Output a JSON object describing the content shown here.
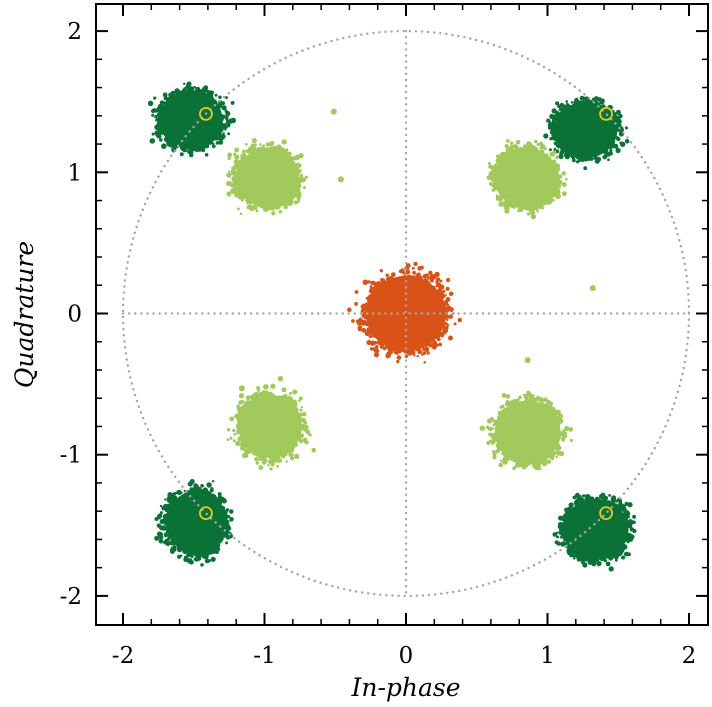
{
  "chart_data": {
    "type": "scatter",
    "xlabel": "In-phase",
    "ylabel": "Quadrature",
    "xlim": [
      -2,
      2
    ],
    "ylim": [
      -2,
      2
    ],
    "x_ticks": [
      "-2",
      "-1",
      "0",
      "1",
      "2"
    ],
    "y_ticks": [
      "-2",
      "-1",
      "0",
      "1",
      "2"
    ],
    "grid": false,
    "reference_circle": {
      "radius": 2,
      "style": "dotted",
      "color": "#a6a6a6"
    },
    "reference_axes": {
      "style": "dotted",
      "color": "#a6a6a6"
    },
    "series": [
      {
        "color": "#d95319",
        "clusters": [
          {
            "cx": 0.0,
            "cy": 0.0,
            "rx": 0.33,
            "ry": 0.31
          }
        ],
        "outliers": []
      },
      {
        "color": "#a1c95b",
        "clusters": [
          {
            "cx": -0.98,
            "cy": 0.96,
            "rx": 0.26,
            "ry": 0.24
          },
          {
            "cx": 0.85,
            "cy": 0.96,
            "rx": 0.26,
            "ry": 0.25
          },
          {
            "cx": -0.96,
            "cy": -0.8,
            "rx": 0.26,
            "ry": 0.26
          },
          {
            "cx": 0.86,
            "cy": -0.84,
            "rx": 0.27,
            "ry": 0.26
          }
        ],
        "outliers": [
          {
            "x": -0.51,
            "y": 1.43
          },
          {
            "x": -0.46,
            "y": 0.95
          },
          {
            "x": 1.32,
            "y": 0.18
          },
          {
            "x": 0.86,
            "y": -0.33
          },
          {
            "x": -1.16,
            "y": -0.53
          }
        ]
      },
      {
        "color": "#0a7137",
        "clusters": [
          {
            "cx": -1.52,
            "cy": 1.37,
            "rx": 0.26,
            "ry": 0.24
          },
          {
            "cx": 1.27,
            "cy": 1.3,
            "rx": 0.26,
            "ry": 0.23
          },
          {
            "cx": -1.48,
            "cy": -1.48,
            "rx": 0.25,
            "ry": 0.26
          },
          {
            "cx": 1.34,
            "cy": -1.53,
            "rx": 0.27,
            "ry": 0.25
          }
        ],
        "outliers": []
      }
    ],
    "reference_points": {
      "color": "#e6c81e",
      "points": [
        {
          "x": -1.414,
          "y": 1.414
        },
        {
          "x": 1.414,
          "y": 1.414
        },
        {
          "x": -1.414,
          "y": -1.414
        },
        {
          "x": 1.414,
          "y": -1.414
        }
      ]
    }
  }
}
